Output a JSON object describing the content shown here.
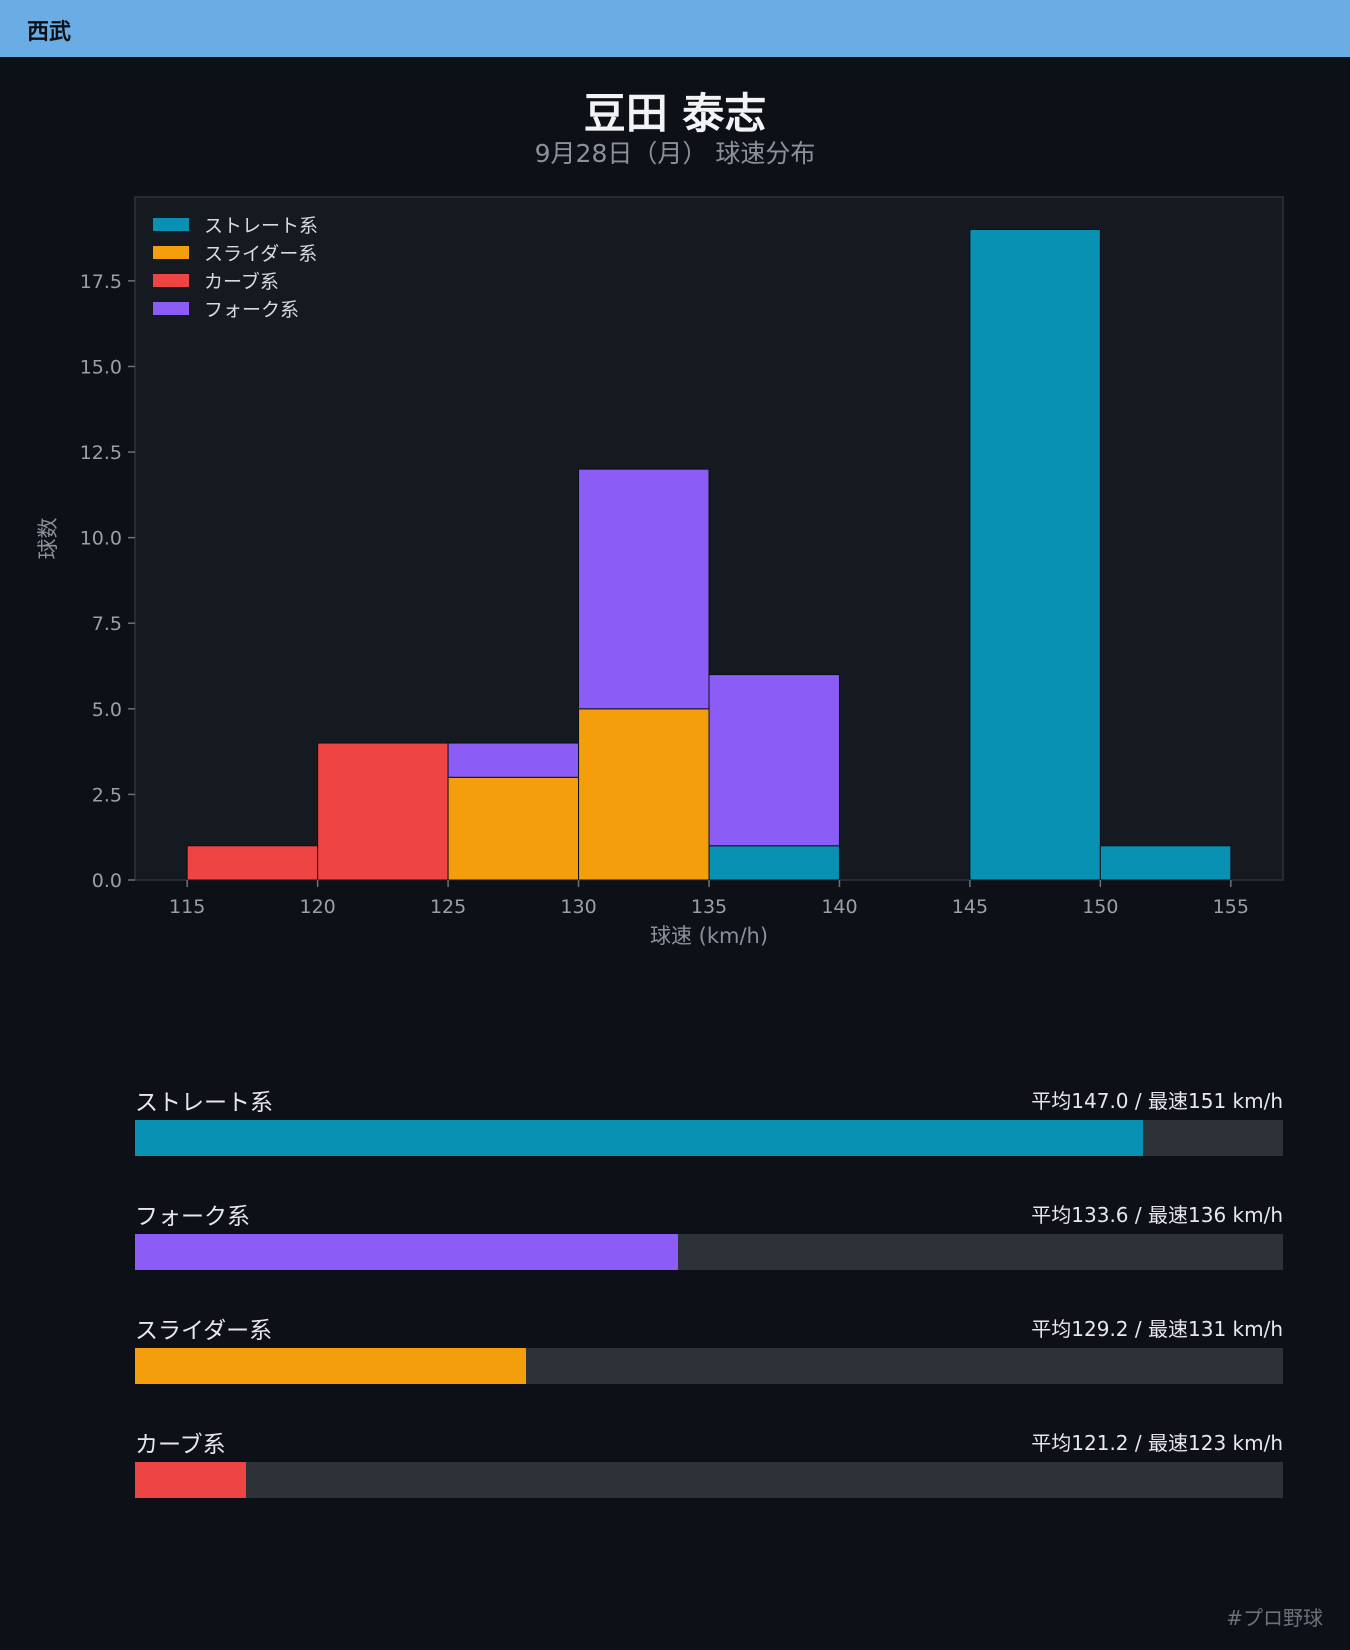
{
  "header": {
    "team": "西武"
  },
  "title": "豆田 泰志",
  "subtitle": "9月28日（月） 球速分布",
  "footer": {
    "hashtag": "#プロ野球"
  },
  "chart_data": {
    "type": "bar",
    "stacked": true,
    "xlabel": "球速 (km/h)",
    "ylabel": "球数",
    "xlim": [
      113,
      157
    ],
    "ylim": [
      0,
      19.95
    ],
    "xticks": [
      115,
      120,
      125,
      130,
      135,
      140,
      145,
      150,
      155
    ],
    "yticks": [
      0.0,
      2.5,
      5.0,
      7.5,
      10.0,
      12.5,
      15.0,
      17.5
    ],
    "bin_edges": [
      115,
      120,
      125,
      130,
      135,
      140,
      145,
      150,
      155
    ],
    "grid": false,
    "legend_position": "top-left",
    "series": [
      {
        "name": "ストレート系",
        "color": "#0891b2",
        "values": [
          0,
          0,
          0,
          0,
          1,
          0,
          19,
          1
        ]
      },
      {
        "name": "スライダー系",
        "color": "#f59e0b",
        "values": [
          0,
          0,
          3,
          5,
          0,
          0,
          0,
          0
        ]
      },
      {
        "name": "カーブ系",
        "color": "#ef4444",
        "values": [
          1,
          4,
          0,
          0,
          0,
          0,
          0,
          0
        ]
      },
      {
        "name": "フォーク系",
        "color": "#8b5cf6",
        "values": [
          0,
          0,
          1,
          7,
          5,
          0,
          0,
          0
        ]
      }
    ]
  },
  "stats": [
    {
      "name": "ストレート系",
      "text": "平均147.0 / 最速151 km/h",
      "color": "#0891b2",
      "fill_fraction": 0.878
    },
    {
      "name": "フォーク系",
      "text": "平均133.6 / 最速136 km/h",
      "color": "#8b5cf6",
      "fill_fraction": 0.473
    },
    {
      "name": "スライダー系",
      "text": "平均129.2 / 最速131 km/h",
      "color": "#f59e0b",
      "fill_fraction": 0.341
    },
    {
      "name": "カーブ系",
      "text": "平均121.2 / 最速123 km/h",
      "color": "#ef4444",
      "fill_fraction": 0.097
    }
  ]
}
